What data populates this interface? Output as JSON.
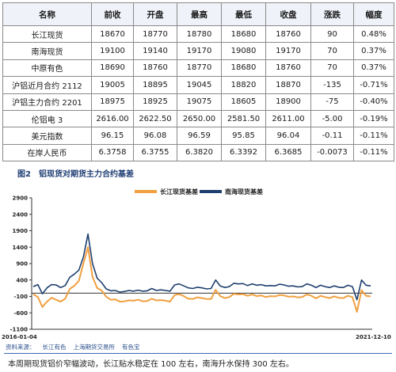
{
  "table": {
    "headers": [
      "名称",
      "前收",
      "开盘",
      "最高",
      "最低",
      "收盘",
      "涨跌",
      "幅度"
    ],
    "rows": [
      [
        "长江现货",
        "18670",
        "18770",
        "18780",
        "18680",
        "18760",
        "90",
        "0.48%"
      ],
      [
        "南海现货",
        "19100",
        "19140",
        "19170",
        "19080",
        "19170",
        "70",
        "0.37%"
      ],
      [
        "中原有色",
        "18690",
        "18760",
        "18770",
        "18680",
        "18760",
        "70",
        "0.37%"
      ],
      [
        "沪铝近月合约 2112",
        "19005",
        "18895",
        "19045",
        "18820",
        "18870",
        "-135",
        "-0.71%"
      ],
      [
        "沪铝主力合约 2201",
        "18975",
        "18925",
        "19075",
        "18605",
        "18900",
        "-75",
        "-0.40%"
      ],
      [
        "伦铝电 3",
        "2616.00",
        "2622.50",
        "2650.00",
        "2581.50",
        "2611.00",
        "-5.00",
        "-0.19%"
      ],
      [
        "美元指数",
        "96.15",
        "96.08",
        "96.59",
        "95.85",
        "96.04",
        "-0.11",
        "-0.11%"
      ],
      [
        "在岸人民币",
        "6.3758",
        "6.3755",
        "6.3820",
        "6.3392",
        "6.3685",
        "-0.0073",
        "-0.11%"
      ]
    ]
  },
  "figure": {
    "label": "图2",
    "title": "铝现货对期货主力合约基差"
  },
  "chart_data": {
    "type": "line",
    "y_ticks": [
      "2900",
      "2400",
      "1900",
      "1400",
      "900",
      "400",
      "-100",
      "-600",
      "-1100"
    ],
    "ylim": [
      -1100,
      2900
    ],
    "x_labels": [
      "2016-01-04",
      "2021-12-10"
    ],
    "legend_position": "top",
    "series": [
      {
        "name": "长江现货基差",
        "color": "#f0a040",
        "values": [
          -30,
          -120,
          -420,
          -260,
          -140,
          -200,
          -260,
          -170,
          130,
          220,
          380,
          900,
          1400,
          500,
          160,
          80,
          -110,
          -200,
          -190,
          -260,
          -250,
          -220,
          -230,
          -200,
          -250,
          -240,
          -170,
          -220,
          -210,
          -230,
          -260,
          -60,
          -30,
          -90,
          -170,
          -180,
          -130,
          -150,
          -180,
          -180,
          100,
          -90,
          -150,
          -120,
          -20,
          -40,
          -30,
          -80,
          -40,
          -90,
          -70,
          -120,
          -90,
          -100,
          -60,
          -70,
          -110,
          -100,
          -130,
          -120,
          -40,
          -80,
          -160,
          -80,
          -120,
          -150,
          -100,
          -140,
          -150,
          -80,
          -120,
          -570,
          90,
          -80,
          -100
        ]
      },
      {
        "name": "南海现货基差",
        "color": "#1f3f6e",
        "values": [
          200,
          260,
          -20,
          160,
          260,
          250,
          170,
          230,
          480,
          580,
          700,
          1100,
          1800,
          900,
          460,
          320,
          130,
          70,
          80,
          30,
          50,
          80,
          60,
          90,
          60,
          70,
          140,
          80,
          100,
          80,
          60,
          250,
          280,
          220,
          160,
          140,
          180,
          160,
          130,
          140,
          400,
          220,
          170,
          200,
          300,
          280,
          290,
          230,
          280,
          240,
          260,
          220,
          230,
          220,
          270,
          250,
          210,
          220,
          190,
          200,
          280,
          240,
          170,
          240,
          200,
          170,
          220,
          180,
          170,
          240,
          200,
          -200,
          400,
          240,
          220
        ]
      }
    ]
  },
  "source": {
    "label": "资料来源：",
    "items": [
      "长江有色",
      "上海期货交易所",
      "有色宝"
    ]
  },
  "body_text": "本周期现货铝价窄幅波动，长江贴水稳定在 100 左右，南海升水保持 300 左右。"
}
